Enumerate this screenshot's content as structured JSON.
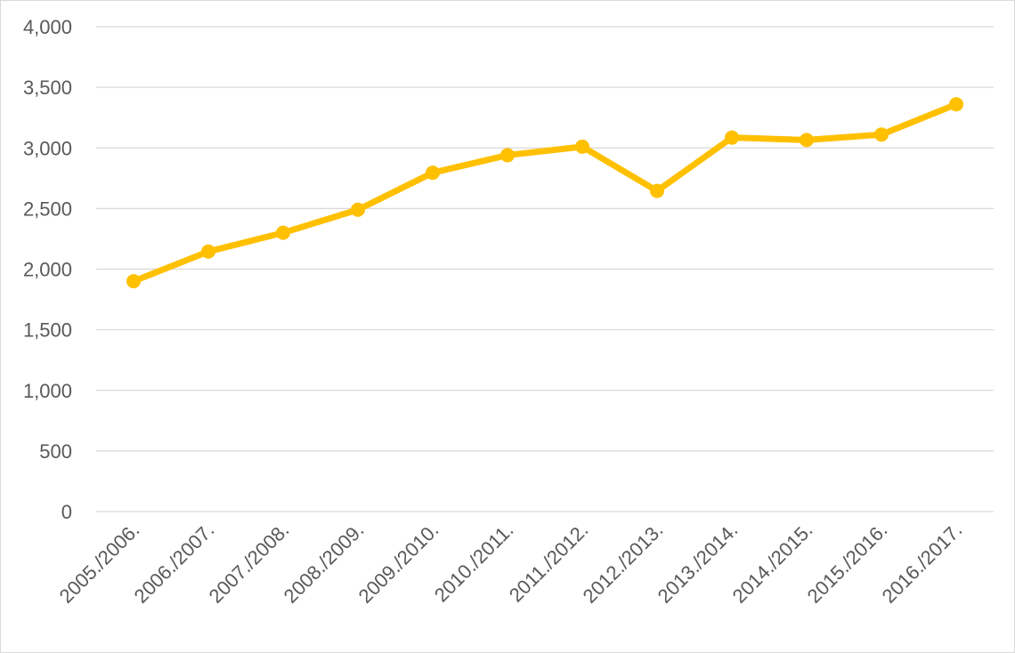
{
  "chart_data": {
    "type": "line",
    "title": "",
    "xlabel": "",
    "ylabel": "",
    "categories": [
      "2005./2006.",
      "2006./2007.",
      "2007./2008.",
      "2008./2009.",
      "2009./2010.",
      "2010./2011.",
      "2011./2012.",
      "2012./2013.",
      "2013./2014.",
      "2014./2015.",
      "2015./2016.",
      "2016./2017."
    ],
    "series": [
      {
        "values": [
          1900,
          2145,
          2300,
          2490,
          2795,
          2940,
          3010,
          2645,
          3085,
          3065,
          3110,
          3360
        ],
        "color": "#FFC000"
      }
    ],
    "ylim": [
      0,
      4000
    ],
    "y_ticks": [
      0,
      500,
      1000,
      1500,
      2000,
      2500,
      3000,
      3500,
      4000
    ],
    "y_tick_labels": [
      "0",
      "500",
      "1,000",
      "1,500",
      "2,000",
      "2,500",
      "3,000",
      "3,500",
      "4,000"
    ],
    "grid": true,
    "legend": "none",
    "colors": {
      "gridline": "#d9d9d9",
      "tick_text": "#595959",
      "line": "#FFC000"
    }
  }
}
